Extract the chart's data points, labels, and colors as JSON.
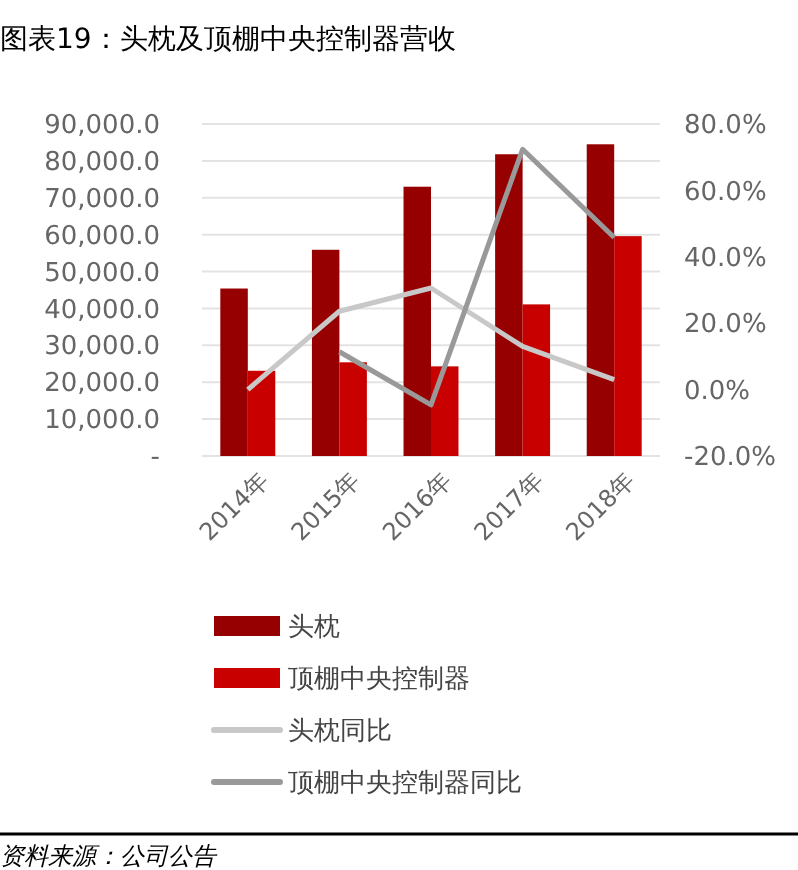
{
  "chart_data": {
    "type": "bar",
    "title": "图表19：头枕及顶棚中央控制器营收",
    "categories": [
      "2014年",
      "2015年",
      "2016年",
      "2017年",
      "2018年"
    ],
    "series": [
      {
        "name": "头枕",
        "color": "#960000",
        "values": [
          45400,
          55900,
          73000,
          81800,
          84500
        ]
      },
      {
        "name": "顶棚中央控制器",
        "color": "#c80000",
        "values": [
          23100,
          25400,
          24300,
          41100,
          59600
        ]
      },
      {
        "name": "头枕同比",
        "type": "line",
        "axis": "y2",
        "color": "#c8c8c8",
        "values": [
          0.0,
          23.6,
          30.6,
          13.0,
          3.0
        ]
      },
      {
        "name": "顶棚中央控制器同比",
        "type": "line",
        "axis": "y2",
        "color": "#999999",
        "values": [
          null,
          11.4,
          -4.6,
          72.4,
          45.8
        ]
      }
    ],
    "ylim": [
      0,
      90000
    ],
    "yticks": [
      {
        "value": 0,
        "label": "-"
      },
      {
        "value": 10000,
        "label": "10,000.0"
      },
      {
        "value": 20000,
        "label": "20,000.0"
      },
      {
        "value": 30000,
        "label": "30,000.0"
      },
      {
        "value": 40000,
        "label": "40,000.0"
      },
      {
        "value": 50000,
        "label": "50,000.0"
      },
      {
        "value": 60000,
        "label": "60,000.0"
      },
      {
        "value": 70000,
        "label": "70,000.0"
      },
      {
        "value": 80000,
        "label": "80,000.0"
      },
      {
        "value": 90000,
        "label": "90,000.0"
      }
    ],
    "y2lim": [
      -20,
      80
    ],
    "y2ticks": [
      {
        "value": -20,
        "label": "-20.0%"
      },
      {
        "value": 0,
        "label": "0.0%"
      },
      {
        "value": 20,
        "label": "20.0%"
      },
      {
        "value": 40,
        "label": "40.0%"
      },
      {
        "value": 60,
        "label": "60.0%"
      },
      {
        "value": 80,
        "label": "80.0%"
      }
    ],
    "grid": "y",
    "legend": "bottom",
    "marker": "none",
    "line_style": "solid",
    "annotations": [
      "资料来源：公司公告"
    ]
  }
}
